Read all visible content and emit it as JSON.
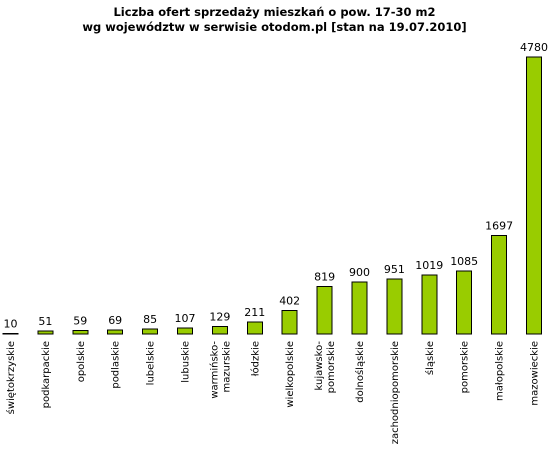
{
  "chart_data": {
    "type": "bar",
    "title": [
      "Liczba ofert sprzedaży mieszkań o pow. 17-30 m2",
      "wg województw w serwisie otodom.pl [stan na 19.07.2010]"
    ],
    "categories": [
      "świętokrzyskie",
      "podkarpackie",
      "opolskie",
      "podlaskie",
      "lubelskie",
      "lubuskie",
      "warmińsko-mazurskie",
      "łódzkie",
      "wielkopolskie",
      "kujawsko-pomorskie",
      "dolnośląskie",
      "zachodniopomorskie",
      "śląskie",
      "pomorskie",
      "małopolskie",
      "mazowieckie"
    ],
    "values": [
      10,
      51,
      59,
      69,
      85,
      107,
      129,
      211,
      402,
      819,
      900,
      951,
      1019,
      1085,
      1697,
      4780
    ],
    "value_labels": true,
    "grid": false,
    "bar_color": "#99cc00",
    "bar_border_color": "#000000"
  }
}
